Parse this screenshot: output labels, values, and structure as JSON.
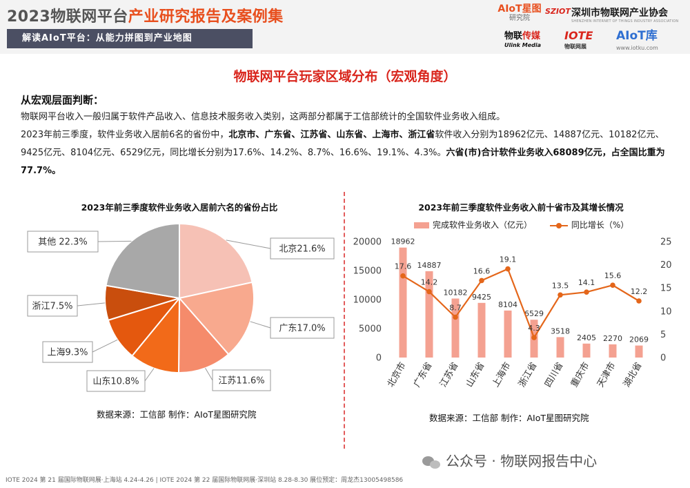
{
  "header": {
    "title_plain": "2023物联网平台",
    "title_accent": "产业研究报告及案例集",
    "subtitle": "解读AIoT平台：从能力拼图到产业地图",
    "logos": {
      "aiot_institute": "AIoT星图",
      "aiot_institute_sub": "研究院",
      "sziot": "SZIOT",
      "association": "深圳市物联网产业协会",
      "association_en": "SHENZHEN INTERNET OF THINGS INDUSTRY ASSOCIATION",
      "ulink_a": "物联",
      "ulink_b": "传媒",
      "ulink_en": "Ulink Media",
      "iote": "IOTE",
      "iote_sub": "物联网展",
      "aiotku": "AIoT库",
      "aiotku_url": "www.iotku.com"
    }
  },
  "page_title": "物联网平台玩家区域分布（宏观角度）",
  "section": {
    "heading": "从宏观层面判断：",
    "para1": "物联网平台收入一般归属于软件产品收入、信息技术服务收入类别，这两部分都属于工信部统计的全国软件业务收入组成。",
    "para2": {
      "a": "2023年前三季度，软件业务收入居前6名的省份中，",
      "b": "北京市、广东省、江苏省、山东省、上海市、浙江省",
      "c": "软件收入分别为18962亿元、14887亿元、10182亿元、9425亿元、8104亿元、6529亿元，同比增长分别为17.6%、14.2%、8.7%、16.6%、19.1%、4.3%。",
      "d": "六省(市)合计软件业务收入68089亿元，占全国比重为77.7%。"
    }
  },
  "chart_data": [
    {
      "type": "pie",
      "title": "2023年前三季度软件业务收入居前六名的省份占比",
      "slices": [
        {
          "label": "北京",
          "value": 21.6,
          "display": "北京21.6%",
          "color": "#f6c1b5"
        },
        {
          "label": "广东",
          "value": 17.0,
          "display": "广东17.0%",
          "color": "#f8a98e"
        },
        {
          "label": "江苏",
          "value": 11.6,
          "display": "江苏11.6%",
          "color": "#f58b6b"
        },
        {
          "label": "山东",
          "value": 10.8,
          "display": "山东10.8%",
          "color": "#f26a19"
        },
        {
          "label": "上海",
          "value": 9.3,
          "display": "上海9.3%",
          "color": "#e4580e"
        },
        {
          "label": "浙江",
          "value": 7.5,
          "display": "浙江7.5%",
          "color": "#c94e0d"
        },
        {
          "label": "其他",
          "value": 22.3,
          "display": "其他 22.3%",
          "color": "#a8a8a8"
        }
      ],
      "source": "数据来源：工信部 制作：AIoT星图研究院"
    },
    {
      "type": "bar",
      "title": "2023年前三季度软件业务收入前十省市及其增长情况",
      "categories": [
        "北京市",
        "广东省",
        "江苏省",
        "山东省",
        "上海市",
        "浙江省",
        "四川省",
        "重庆市",
        "天津市",
        "湖北省"
      ],
      "series": [
        {
          "name": "完成软件业务收入（亿元）",
          "type": "bar",
          "axis": "left",
          "color": "#f4a191",
          "values": [
            18962,
            14887,
            10182,
            9425,
            8104,
            6529,
            3518,
            2405,
            2270,
            2069
          ]
        },
        {
          "name": "同比增长（%）",
          "type": "line",
          "axis": "right",
          "color": "#e4661a",
          "values": [
            17.6,
            14.2,
            8.7,
            16.6,
            19.1,
            4.3,
            13.5,
            14.1,
            15.6,
            12.2
          ]
        }
      ],
      "ylim_left": [
        0,
        20000
      ],
      "yticks_left": [
        0,
        5000,
        10000,
        15000,
        20000
      ],
      "ylim_right": [
        0,
        25
      ],
      "yticks_right": [
        0,
        5,
        10,
        15,
        20,
        25
      ],
      "source": "数据来源：工信部 制作：AIoT星图研究院"
    }
  ],
  "watermark": "公众号 · 物联网报告中心",
  "footer": "IOTE 2024 第 21 届国际物联网展·上海站 4.24-4.26 | IOTE 2024 第 22 届国际物联网展·深圳站 8.28-8.30 展位预定：周龙杰13005498586"
}
